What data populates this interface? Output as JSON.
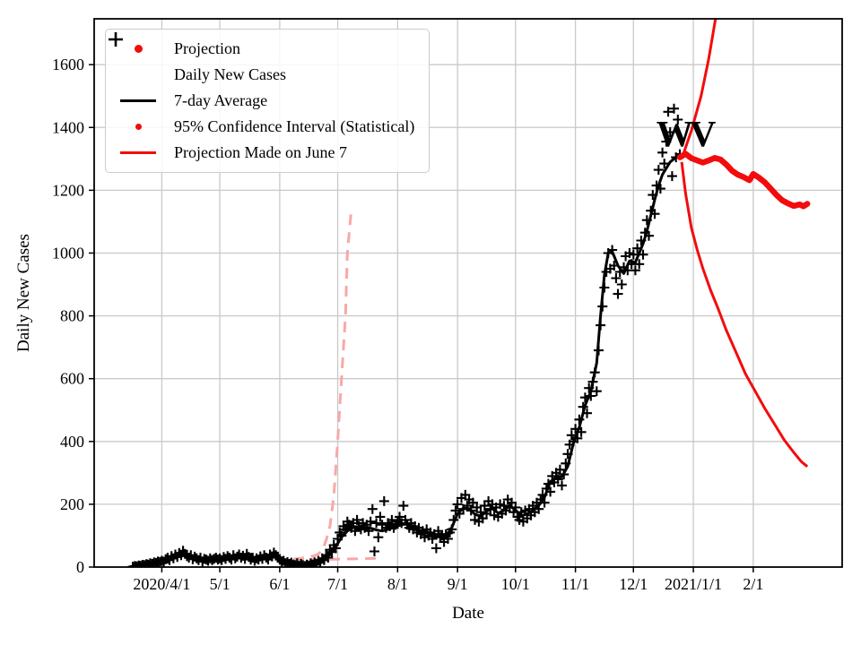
{
  "chart_data": {
    "type": "mixed-line-scatter",
    "title": "",
    "xlabel": "Date",
    "ylabel": "Daily New Cases",
    "grid": true,
    "colors": {
      "red": "#f40b0b",
      "pink": "#f8a8a8",
      "black": "#000000",
      "grid": "#c9c9c9"
    },
    "x_axis": {
      "unit": "days_since_2020-04-01",
      "min": -35,
      "max": 352,
      "ticks": [
        {
          "label": "2020/4/1",
          "day": 0
        },
        {
          "label": "5/1",
          "day": 30
        },
        {
          "label": "6/1",
          "day": 61
        },
        {
          "label": "7/1",
          "day": 91
        },
        {
          "label": "8/1",
          "day": 122
        },
        {
          "label": "9/1",
          "day": 153
        },
        {
          "label": "10/1",
          "day": 183
        },
        {
          "label": "11/1",
          "day": 214
        },
        {
          "label": "12/1",
          "day": 244
        },
        {
          "label": "2021/1/1",
          "day": 275
        },
        {
          "label": "2/1",
          "day": 306
        }
      ]
    },
    "y_axis": {
      "min": 0,
      "max": 1746,
      "ticks": [
        0,
        200,
        400,
        600,
        800,
        1000,
        1200,
        1400,
        1600
      ]
    },
    "annotation": {
      "text": "WV",
      "day": 269,
      "value": 1365,
      "color": "#000000"
    },
    "legend": {
      "position": "upper-left",
      "entries": [
        {
          "label": "Projection",
          "marker": "dot",
          "color": "#f40b0b",
          "size": 9
        },
        {
          "label": "Daily New Cases",
          "marker": "plus",
          "color": "#000000",
          "size": 15
        },
        {
          "label": "7-day Average",
          "marker": "line",
          "color": "#000000",
          "size": 3.6
        },
        {
          "label": "95% Confidence Interval (Statistical)",
          "marker": "dot",
          "color": "#f40b0b",
          "size": 7
        },
        {
          "label": "Projection Made on June 7",
          "marker": "line",
          "color": "#f40b0b",
          "size": 3
        }
      ]
    },
    "series": {
      "daily_new_cases": {
        "name": "Daily New Cases",
        "type": "scatter",
        "marker": "plus",
        "color": "#000000",
        "marker_half": 5.5,
        "stroke": 2.1,
        "start_day": -15,
        "values": [
          1,
          3,
          2,
          5,
          4,
          7,
          6,
          9,
          8,
          12,
          10,
          15,
          13,
          18,
          16,
          20,
          14,
          25,
          30,
          22,
          35,
          28,
          40,
          32,
          45,
          38,
          52,
          42,
          35,
          30,
          38,
          25,
          33,
          28,
          22,
          30,
          18,
          26,
          24,
          20,
          28,
          22,
          26,
          30,
          24,
          28,
          22,
          32,
          26,
          35,
          30,
          24,
          38,
          28,
          33,
          40,
          30,
          36,
          26,
          42,
          32,
          24,
          30,
          20,
          28,
          24,
          34,
          26,
          38,
          30,
          24,
          40,
          34,
          46,
          38,
          30,
          24,
          18,
          20,
          12,
          16,
          10,
          14,
          8,
          6,
          12,
          4,
          10,
          6,
          3,
          8,
          5,
          12,
          8,
          15,
          10,
          20,
          14,
          28,
          22,
          38,
          30,
          55,
          48,
          70,
          60,
          90,
          110,
          100,
          130,
          120,
          145,
          135,
          125,
          140,
          115,
          150,
          130,
          120,
          140,
          125,
          135,
          115,
          145,
          185,
          50,
          140,
          95,
          160,
          135,
          210,
          125,
          140,
          130,
          150,
          125,
          135,
          145,
          160,
          140,
          195,
          150,
          135,
          125,
          140,
          120,
          130,
          110,
          125,
          105,
          115,
          95,
          120,
          100,
          110,
          90,
          105,
          60,
          115,
          95,
          100,
          80,
          105,
          90,
          110,
          120,
          150,
          180,
          200,
          170,
          220,
          185,
          230,
          195,
          215,
          180,
          205,
          150,
          190,
          145,
          175,
          155,
          195,
          170,
          210,
          185,
          200,
          165,
          190,
          160,
          200,
          170,
          195,
          180,
          215,
          190,
          205,
          175,
          190,
          160,
          150,
          175,
          145,
          180,
          155,
          185,
          165,
          195,
          175,
          205,
          185,
          215,
          230,
          205,
          250,
          265,
          240,
          290,
          270,
          300,
          280,
          310,
          260,
          295,
          330,
          360,
          390,
          420,
          400,
          440,
          410,
          470,
          430,
          510,
          540,
          490,
          570,
          545,
          590,
          620,
          560,
          690,
          770,
          830,
          890,
          940,
          1000,
          950,
          1010,
          960,
          920,
          870,
          940,
          900,
          955,
          990,
          945,
          1000,
          965,
          995,
          945,
          1015,
          965,
          1040,
          995,
          1065,
          1105,
          1055,
          1135,
          1185,
          1125,
          1215,
          1265,
          1205,
          1320,
          1285,
          1355,
          1450,
          1385,
          1245,
          1460,
          1305,
          1425,
          1315
        ]
      },
      "seven_day_average": {
        "name": "7-day Average",
        "type": "line",
        "color": "#000000",
        "width": 3,
        "dash": "",
        "days": [
          -15,
          -10,
          -5,
          0,
          4,
          8,
          12,
          16,
          20,
          24,
          28,
          32,
          36,
          40,
          44,
          48,
          52,
          56,
          60,
          63,
          66,
          69,
          72,
          75,
          78,
          81,
          84,
          87,
          90,
          93,
          96,
          99,
          102,
          105,
          108,
          111,
          114,
          117,
          120,
          123,
          126,
          129,
          132,
          135,
          138,
          141,
          144,
          147,
          150,
          153,
          156,
          159,
          162,
          165,
          168,
          171,
          174,
          177,
          180,
          183,
          186,
          189,
          192,
          195,
          198,
          201,
          204,
          207,
          210,
          213,
          216,
          219,
          222,
          225,
          227,
          229,
          231,
          233,
          236,
          239,
          242,
          245,
          247,
          249,
          251,
          253,
          255,
          257,
          259,
          261,
          263,
          265,
          267,
          268
        ],
        "values": [
          2,
          5,
          9,
          16,
          25,
          33,
          38,
          31,
          26,
          23,
          25,
          27,
          30,
          33,
          31,
          26,
          29,
          32,
          37,
          22,
          15,
          10,
          8,
          8,
          10,
          14,
          22,
          40,
          65,
          95,
          115,
          126,
          124,
          120,
          124,
          118,
          115,
          120,
          126,
          133,
          138,
          128,
          120,
          112,
          107,
          100,
          96,
          98,
          125,
          170,
          188,
          186,
          168,
          162,
          178,
          186,
          172,
          180,
          195,
          182,
          162,
          170,
          180,
          196,
          222,
          272,
          285,
          288,
          320,
          395,
          445,
          515,
          560,
          650,
          800,
          930,
          1000,
          1005,
          960,
          935,
          975,
          970,
          1000,
          1030,
          1070,
          1120,
          1170,
          1215,
          1250,
          1270,
          1290,
          1300,
          1310,
          1310
        ]
      },
      "june7_ci_upper": {
        "name": "95% CI of June 7 projection (upper)",
        "type": "line",
        "color": "#f8a8a8",
        "width": 3,
        "dash": "12 8",
        "days": [
          68,
          72,
          76,
          79,
          81,
          83,
          85,
          87,
          89,
          91,
          93,
          95,
          96,
          97.8
        ],
        "values": [
          25,
          28,
          32,
          36,
          42,
          53,
          85,
          130,
          226,
          400,
          600,
          800,
          1000,
          1123
        ]
      },
      "june7_ci_lower": {
        "name": "95% CI of June 7 projection (lower)",
        "type": "line",
        "color": "#f8a8a8",
        "width": 3,
        "dash": "12 8",
        "days": [
          68,
          75,
          83,
          91,
          99,
          107,
          112
        ],
        "values": [
          25,
          24,
          24,
          25,
          26,
          27,
          28
        ]
      },
      "projection": {
        "name": "Projection",
        "type": "line",
        "color": "#f40b0b",
        "width": 6.5,
        "dash": "",
        "round": true,
        "days": [
          268,
          271,
          274,
          277,
          280,
          283,
          286,
          289,
          292,
          295,
          298,
          301,
          304,
          306,
          309,
          312,
          315,
          318,
          321,
          324,
          327,
          330,
          332,
          334
        ],
        "values": [
          1305,
          1316,
          1302,
          1295,
          1288,
          1295,
          1303,
          1298,
          1282,
          1262,
          1250,
          1242,
          1232,
          1252,
          1240,
          1225,
          1205,
          1185,
          1168,
          1158,
          1150,
          1155,
          1149,
          1157
        ]
      },
      "projection_ci_upper": {
        "name": "95% CI (upper)",
        "type": "line",
        "color": "#f40b0b",
        "width": 3,
        "dash": "",
        "days": [
          269,
          274,
          279,
          283,
          287
        ],
        "values": [
          1300,
          1390,
          1500,
          1620,
          1765
        ]
      },
      "projection_ci_lower": {
        "name": "95% CI (lower)",
        "type": "line",
        "color": "#f40b0b",
        "width": 3,
        "dash": "",
        "days": [
          269,
          271,
          274,
          277,
          280,
          284,
          288,
          292,
          297,
          302,
          307,
          312,
          317,
          322,
          327,
          331,
          334
        ],
        "values": [
          1290,
          1190,
          1080,
          1010,
          950,
          880,
          820,
          755,
          685,
          615,
          560,
          505,
          455,
          405,
          365,
          335,
          320
        ]
      }
    }
  }
}
